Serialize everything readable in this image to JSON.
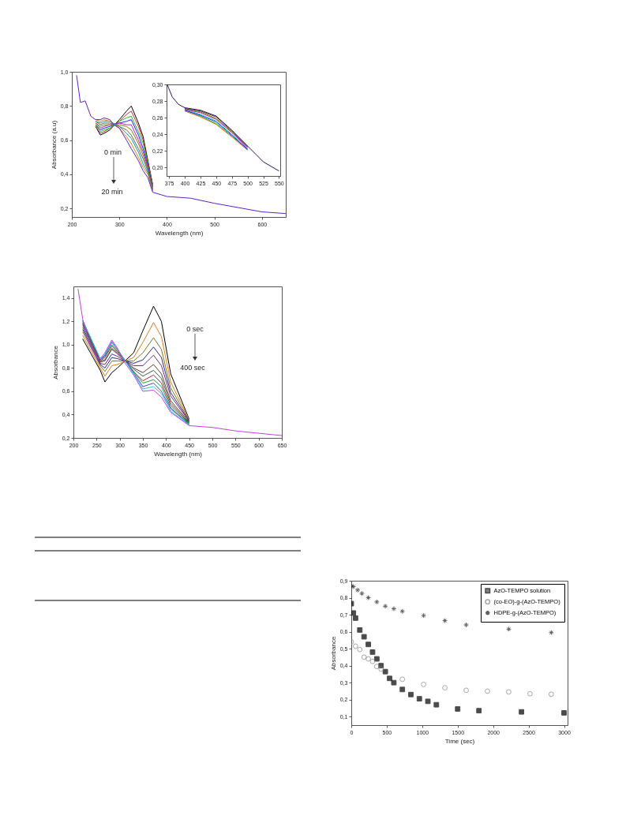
{
  "chart_data": [
    {
      "type": "line",
      "xlabel": "Wavelength (nm)",
      "ylabel": "Absorbance (a.u)",
      "annotations": [
        "0 min",
        "20 min"
      ],
      "grid": false,
      "xlim": [
        200,
        650
      ],
      "ylim": [
        0.15,
        1.0
      ],
      "xticks": [
        200,
        300,
        400,
        500,
        600
      ],
      "yticks": [
        {
          "value": 0.2,
          "label": "0,2"
        },
        {
          "value": 0.4,
          "label": "0,4"
        },
        {
          "value": 0.6,
          "label": "0,6"
        },
        {
          "value": 0.8,
          "label": "0,8"
        },
        {
          "value": 1.0,
          "label": "1,0"
        }
      ],
      "x": [
        210,
        218,
        228,
        240,
        250,
        260,
        268,
        280,
        288,
        300,
        315,
        325,
        340,
        350,
        360,
        370,
        400,
        450,
        500,
        600,
        650
      ],
      "series": [
        {
          "color": "#000000",
          "values": [
            null,
            null,
            null,
            null,
            0.68,
            0.63,
            0.64,
            0.66,
            null,
            0.72,
            0.77,
            0.8,
            0.7,
            0.62,
            0.48,
            0.34,
            null,
            null,
            null,
            null,
            null
          ]
        },
        {
          "color": "#d03030",
          "values": [
            null,
            null,
            null,
            null,
            0.68,
            0.64,
            0.65,
            0.67,
            null,
            0.71,
            0.75,
            0.77,
            0.68,
            0.6,
            0.47,
            0.335,
            null,
            null,
            null,
            null,
            null
          ]
        },
        {
          "color": "#20c020",
          "values": [
            null,
            null,
            null,
            null,
            0.69,
            0.65,
            0.66,
            0.67,
            null,
            0.71,
            0.73,
            0.74,
            0.65,
            0.58,
            0.46,
            0.33,
            null,
            null,
            null,
            null,
            null
          ]
        },
        {
          "color": "#2020ff",
          "values": [
            null,
            null,
            null,
            null,
            0.69,
            0.66,
            0.67,
            0.68,
            null,
            0.7,
            0.71,
            0.72,
            0.63,
            0.55,
            0.45,
            0.325,
            null,
            null,
            null,
            null,
            null
          ]
        },
        {
          "color": "#c020c0",
          "values": [
            null,
            null,
            null,
            null,
            0.7,
            0.67,
            0.68,
            0.69,
            null,
            0.7,
            0.69,
            0.69,
            0.6,
            0.53,
            0.44,
            0.32,
            null,
            null,
            null,
            null,
            null
          ]
        },
        {
          "color": "#808000",
          "values": [
            null,
            null,
            null,
            null,
            0.7,
            0.68,
            0.69,
            0.69,
            null,
            0.69,
            0.68,
            0.66,
            0.58,
            0.51,
            0.43,
            0.315,
            null,
            null,
            null,
            null,
            null
          ]
        },
        {
          "color": "#606060",
          "values": [
            null,
            null,
            null,
            null,
            0.71,
            0.69,
            0.7,
            0.7,
            null,
            0.68,
            0.66,
            0.63,
            0.55,
            0.49,
            0.42,
            0.31,
            null,
            null,
            null,
            null,
            null
          ]
        },
        {
          "color": "#00a0a0",
          "values": [
            null,
            null,
            null,
            null,
            0.71,
            0.7,
            0.71,
            0.71,
            null,
            0.68,
            0.64,
            0.61,
            0.53,
            0.46,
            0.41,
            0.305,
            null,
            null,
            null,
            null,
            null
          ]
        },
        {
          "color": "#e08020",
          "values": [
            null,
            null,
            null,
            null,
            0.72,
            0.71,
            0.72,
            0.71,
            null,
            0.67,
            0.62,
            0.58,
            0.5,
            0.44,
            0.4,
            0.3,
            null,
            null,
            null,
            null,
            null
          ]
        },
        {
          "color": "#6020c0",
          "values": [
            0.98,
            0.82,
            0.83,
            0.74,
            0.72,
            0.72,
            0.73,
            0.72,
            0.69,
            0.67,
            0.6,
            0.55,
            0.48,
            0.42,
            0.38,
            0.295,
            0.27,
            0.26,
            0.23,
            0.18,
            0.17
          ]
        }
      ]
    },
    {
      "type": "line",
      "grid": false,
      "xlim": [
        371,
        552
      ],
      "ylim": [
        0.19,
        0.3
      ],
      "xticks": [
        375,
        400,
        425,
        450,
        475,
        500,
        525,
        550
      ],
      "yticks": [
        {
          "value": 0.2,
          "label": "0,20"
        },
        {
          "value": 0.22,
          "label": "0,22"
        },
        {
          "value": 0.24,
          "label": "0,24"
        },
        {
          "value": 0.26,
          "label": "0,26"
        },
        {
          "value": 0.28,
          "label": "0,28"
        },
        {
          "value": 0.3,
          "label": "0,30"
        }
      ],
      "x": [
        372,
        380,
        390,
        400,
        425,
        450,
        475,
        500,
        525,
        550
      ],
      "series": [
        {
          "color": "#e06020",
          "values": [
            null,
            null,
            null,
            0.268,
            0.261,
            0.252,
            0.237,
            0.221,
            null,
            null
          ]
        },
        {
          "color": "#20c020",
          "values": [
            null,
            null,
            null,
            0.269,
            0.262,
            0.253,
            0.238,
            0.222,
            null,
            null
          ]
        },
        {
          "color": "#2020ff",
          "values": [
            null,
            null,
            null,
            0.269,
            0.263,
            0.255,
            0.239,
            0.222,
            null,
            null
          ]
        },
        {
          "color": "#20c0c0",
          "values": [
            null,
            null,
            null,
            0.27,
            0.264,
            0.256,
            0.24,
            0.223,
            null,
            null
          ]
        },
        {
          "color": "#c020c0",
          "values": [
            null,
            null,
            null,
            0.27,
            0.266,
            0.258,
            0.242,
            0.224,
            null,
            null
          ]
        },
        {
          "color": "#808000",
          "values": [
            null,
            null,
            null,
            0.271,
            0.267,
            0.259,
            0.243,
            0.225,
            null,
            null
          ]
        },
        {
          "color": "#404040",
          "values": [
            null,
            null,
            null,
            0.271,
            0.268,
            0.261,
            0.244,
            0.225,
            null,
            null
          ]
        },
        {
          "color": "#301060",
          "values": [
            0.3,
            0.285,
            0.276,
            0.272,
            0.269,
            0.262,
            0.245,
            0.226,
            0.207,
            0.196
          ]
        }
      ]
    },
    {
      "type": "line",
      "xlabel": "Wavelength (nm)",
      "ylabel": "Absorbance",
      "annotations": [
        "0 sec",
        "400 sec"
      ],
      "grid": false,
      "xlim": [
        200,
        650
      ],
      "ylim": [
        0.2,
        1.5
      ],
      "xticks": [
        200,
        250,
        300,
        350,
        400,
        450,
        500,
        550,
        600,
        650
      ],
      "yticks": [
        {
          "value": 0.2,
          "label": "0,2"
        },
        {
          "value": 0.4,
          "label": "0,4"
        },
        {
          "value": 0.6,
          "label": "0,6"
        },
        {
          "value": 0.8,
          "label": "0,8"
        },
        {
          "value": 1.0,
          "label": "1,0"
        },
        {
          "value": 1.2,
          "label": "1,2"
        },
        {
          "value": 1.4,
          "label": "1,4"
        }
      ],
      "x": [
        210,
        220,
        235,
        250,
        258,
        268,
        283,
        295,
        310,
        330,
        350,
        373,
        390,
        410,
        450,
        500,
        550,
        650
      ],
      "series": [
        {
          "color": "#000000",
          "values": [
            null,
            1.05,
            null,
            null,
            0.78,
            0.68,
            0.76,
            0.8,
            null,
            0.93,
            1.12,
            1.33,
            1.2,
            0.75,
            0.36,
            null,
            null,
            null
          ]
        },
        {
          "color": "#e07b20",
          "values": [
            null,
            1.08,
            null,
            null,
            0.8,
            0.73,
            0.82,
            0.83,
            null,
            0.89,
            1.02,
            1.19,
            1.07,
            0.68,
            0.355,
            null,
            null,
            null
          ]
        },
        {
          "color": "#7a7a20",
          "values": [
            null,
            1.11,
            null,
            null,
            0.82,
            0.77,
            0.86,
            0.86,
            null,
            0.86,
            0.93,
            1.06,
            0.96,
            0.63,
            0.35,
            null,
            null,
            null
          ]
        },
        {
          "color": "#2a2a8a",
          "values": [
            null,
            1.13,
            null,
            null,
            0.83,
            0.8,
            0.89,
            0.88,
            null,
            0.84,
            0.87,
            0.98,
            0.89,
            0.59,
            0.345,
            null,
            null,
            null
          ]
        },
        {
          "color": "#6a2a8a",
          "values": [
            null,
            1.15,
            null,
            null,
            0.84,
            0.83,
            0.92,
            0.9,
            null,
            0.82,
            0.82,
            0.91,
            0.82,
            0.56,
            0.34,
            null,
            null,
            null
          ]
        },
        {
          "color": "#7a3a2a",
          "values": [
            null,
            1.17,
            null,
            null,
            0.85,
            0.86,
            0.96,
            0.92,
            null,
            0.8,
            0.76,
            0.83,
            0.75,
            0.52,
            0.335,
            null,
            null,
            null
          ]
        },
        {
          "color": "#2a6a5a",
          "values": [
            null,
            1.18,
            null,
            null,
            0.86,
            0.87,
            0.97,
            0.93,
            null,
            0.79,
            0.73,
            0.78,
            0.71,
            0.5,
            0.33,
            null,
            null,
            null
          ]
        },
        {
          "color": "#aa2a2a",
          "values": [
            null,
            1.19,
            null,
            null,
            0.86,
            0.89,
            0.99,
            0.94,
            null,
            0.77,
            0.69,
            0.74,
            0.67,
            0.48,
            0.325,
            null,
            null,
            null
          ]
        },
        {
          "color": "#20a040",
          "values": [
            null,
            1.2,
            null,
            null,
            0.87,
            0.9,
            1.0,
            0.95,
            null,
            0.77,
            0.67,
            0.7,
            0.64,
            0.46,
            0.32,
            null,
            null,
            null
          ]
        },
        {
          "color": "#3050d0",
          "values": [
            null,
            1.21,
            null,
            null,
            0.87,
            0.91,
            1.02,
            0.96,
            null,
            0.76,
            0.64,
            0.67,
            0.6,
            0.45,
            0.315,
            null,
            null,
            null
          ]
        },
        {
          "color": "#30c0e0",
          "values": [
            null,
            1.21,
            null,
            null,
            0.88,
            0.92,
            1.03,
            0.96,
            null,
            0.75,
            0.62,
            0.64,
            0.58,
            0.43,
            0.31,
            null,
            null,
            null
          ]
        },
        {
          "color": "#c040e0",
          "values": [
            1.48,
            1.22,
            1.0,
            0.89,
            0.88,
            0.93,
            1.04,
            0.97,
            0.85,
            0.74,
            0.6,
            0.61,
            0.55,
            0.42,
            0.305,
            0.29,
            0.26,
            0.22
          ]
        }
      ]
    },
    {
      "type": "scatter",
      "xlabel": "Time (sec)",
      "ylabel": "Absorbance",
      "grid": false,
      "legend": "top right",
      "xlim": [
        0,
        3050
      ],
      "ylim": [
        0.05,
        0.9
      ],
      "xticks": [
        0,
        500,
        1000,
        1500,
        2000,
        2500,
        3000
      ],
      "yticks": [
        {
          "value": 0.1,
          "label": "0,1"
        },
        {
          "value": 0.2,
          "label": "0,2"
        },
        {
          "value": 0.3,
          "label": "0,3"
        },
        {
          "value": 0.4,
          "label": "0,4"
        },
        {
          "value": 0.5,
          "label": "0,5"
        },
        {
          "value": 0.6,
          "label": "0,6"
        },
        {
          "value": 0.7,
          "label": "0,7"
        },
        {
          "value": 0.8,
          "label": "0,8"
        },
        {
          "value": 0.9,
          "label": "0,9"
        }
      ],
      "series": [
        {
          "name": "AzO-TEMPO solution",
          "color": "#000000",
          "marker": "square",
          "x": [
            0,
            30,
            60,
            120,
            180,
            240,
            300,
            360,
            420,
            480,
            540,
            600,
            720,
            840,
            960,
            1080,
            1200,
            1500,
            1800,
            2400,
            3000
          ],
          "values": [
            0.765,
            0.71,
            0.68,
            0.61,
            0.57,
            0.525,
            0.48,
            0.44,
            0.4,
            0.365,
            0.325,
            0.3,
            0.26,
            0.23,
            0.205,
            0.19,
            0.17,
            0.145,
            0.135,
            0.128,
            0.122
          ]
        },
        {
          "name": "(co-EO)-g-(AzO-TEMPO)",
          "color": "#808080",
          "marker": "circle",
          "x": [
            0,
            60,
            120,
            180,
            240,
            300,
            360,
            420,
            720,
            1020,
            1320,
            1620,
            1920,
            2220,
            2520,
            2820
          ],
          "values": [
            0.54,
            0.515,
            0.495,
            0.45,
            0.44,
            0.425,
            0.395,
            0.38,
            0.32,
            0.29,
            0.27,
            0.255,
            0.25,
            0.245,
            0.235,
            0.232
          ]
        },
        {
          "name": "HDPE-g-(AzO-TEMPO)",
          "color": "#202020",
          "marker": "cross",
          "x": [
            0,
            30,
            90,
            150,
            240,
            360,
            480,
            600,
            720,
            1020,
            1320,
            1620,
            2220,
            2820
          ],
          "values": [
            0.87,
            0.865,
            0.845,
            0.825,
            0.8,
            0.775,
            0.75,
            0.735,
            0.72,
            0.695,
            0.665,
            0.64,
            0.615,
            0.595
          ]
        }
      ]
    }
  ]
}
